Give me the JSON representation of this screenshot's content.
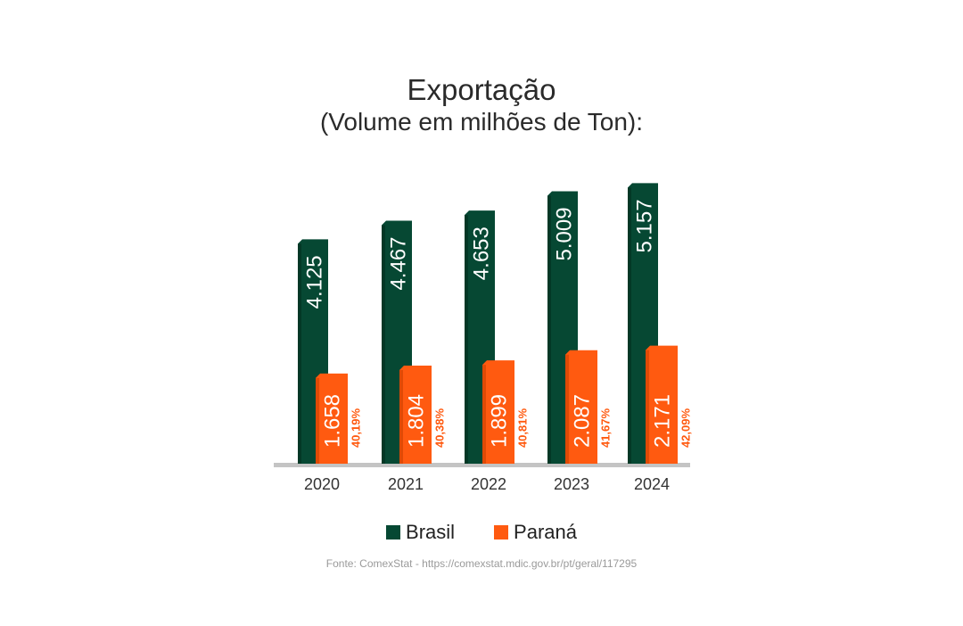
{
  "chart_data": {
    "type": "bar",
    "title": "Exportação",
    "subtitle": "(Volume em milhões de Ton):",
    "categories": [
      "2020",
      "2021",
      "2022",
      "2023",
      "2024"
    ],
    "series": [
      {
        "name": "Brasil",
        "values": [
          4.125,
          4.467,
          4.653,
          5.009,
          5.157
        ],
        "labels": [
          "4.125",
          "4.467",
          "4.653",
          "5.009",
          "5.157"
        ],
        "color": "#064833"
      },
      {
        "name": "Paraná",
        "values": [
          1.658,
          1.804,
          1.899,
          2.087,
          2.171
        ],
        "labels": [
          "1.658",
          "1.804",
          "1.899",
          "2.087",
          "2.171"
        ],
        "color": "#ff5a10"
      }
    ],
    "share_labels": [
      "40,19%",
      "40,38%",
      "40,81%",
      "41,67%",
      "42,09%"
    ],
    "share_color": "#ff5a10",
    "ylim": [
      0,
      5.6
    ],
    "grid": false,
    "legend_position": "bottom-center"
  },
  "source": "Fonte: ComexStat - https://comexstat.mdic.gov.br/pt/geral/117295"
}
